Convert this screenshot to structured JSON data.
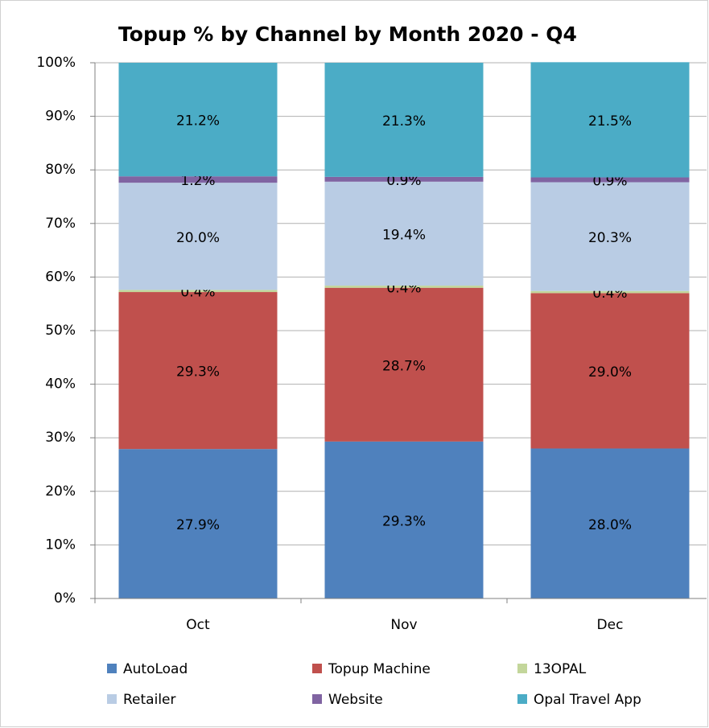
{
  "chart_data": {
    "type": "stacked_bar",
    "title": "Topup % by Channel by Month 2020 - Q4",
    "categories": [
      "Oct",
      "Nov",
      "Dec"
    ],
    "series": [
      {
        "name": "AutoLoad",
        "color": "#4f81bd",
        "values": [
          27.9,
          29.3,
          28.0
        ],
        "value_labels": [
          "27.9%",
          "29.3%",
          "28.0%"
        ]
      },
      {
        "name": "Topup Machine",
        "color": "#c0504d",
        "values": [
          29.3,
          28.7,
          29.0
        ],
        "value_labels": [
          "29.3%",
          "28.7%",
          "29.0%"
        ]
      },
      {
        "name": "13OPAL",
        "color": "#c3d69b",
        "values": [
          0.4,
          0.4,
          0.4
        ],
        "value_labels": [
          "0.4%",
          "0.4%",
          "0.4%"
        ]
      },
      {
        "name": "Retailer",
        "color": "#b9cce4",
        "values": [
          20.0,
          19.4,
          20.3
        ],
        "value_labels": [
          "20.0%",
          "19.4%",
          "20.3%"
        ]
      },
      {
        "name": "Website",
        "color": "#8064a2",
        "values": [
          1.2,
          0.9,
          0.9
        ],
        "value_labels": [
          "1.2%",
          "0.9%",
          "0.9%"
        ]
      },
      {
        "name": "Opal Travel App",
        "color": "#4bacc6",
        "values": [
          21.2,
          21.3,
          21.5
        ],
        "value_labels": [
          "21.2%",
          "21.3%",
          "21.5%"
        ]
      }
    ],
    "ylim": [
      0,
      100
    ],
    "yticks": [
      {
        "value": 0,
        "label": "0%"
      },
      {
        "value": 10,
        "label": "10%"
      },
      {
        "value": 20,
        "label": "20%"
      },
      {
        "value": 30,
        "label": "30%"
      },
      {
        "value": 40,
        "label": "40%"
      },
      {
        "value": 50,
        "label": "50%"
      },
      {
        "value": 60,
        "label": "60%"
      },
      {
        "value": 70,
        "label": "70%"
      },
      {
        "value": 80,
        "label": "80%"
      },
      {
        "value": 90,
        "label": "90%"
      },
      {
        "value": 100,
        "label": "100%"
      }
    ],
    "grid": true,
    "legend": "bottom"
  }
}
